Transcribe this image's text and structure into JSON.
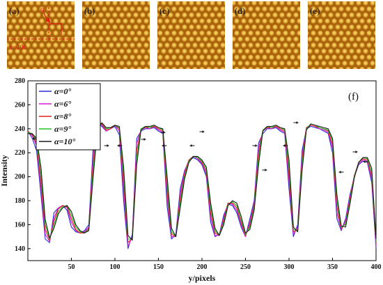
{
  "panels": [
    {
      "label": "(a)",
      "annotation_x": "x=200",
      "annotation_alpha": "α"
    },
    {
      "label": "(b)"
    },
    {
      "label": "(c)"
    },
    {
      "label": "(d)"
    },
    {
      "label": "(e)"
    }
  ],
  "colors": {
    "pattern_dark": "#8a4a08",
    "pattern_mid": "#c98b1a",
    "pattern_spot": "#f2c85a",
    "overlay_red": "#e0201a",
    "arrow": "#111111"
  },
  "chart_data": {
    "type": "line",
    "panel_label": "(f)",
    "xlabel": "y/pixels",
    "ylabel": "Intensity",
    "xlim": [
      0,
      400
    ],
    "ylim": [
      130,
      280
    ],
    "x_ticks": [
      50,
      100,
      150,
      200,
      250,
      300,
      350,
      400
    ],
    "y_ticks": [
      140,
      160,
      180,
      200,
      220,
      240,
      260,
      280
    ],
    "grid": false,
    "legend_position": "top-left",
    "x": [
      0,
      5,
      10,
      15,
      20,
      25,
      30,
      35,
      40,
      45,
      50,
      55,
      60,
      65,
      70,
      75,
      80,
      85,
      90,
      95,
      100,
      105,
      110,
      115,
      120,
      125,
      130,
      135,
      140,
      145,
      150,
      155,
      160,
      165,
      170,
      175,
      180,
      185,
      190,
      195,
      200,
      205,
      210,
      215,
      220,
      225,
      230,
      235,
      240,
      245,
      250,
      255,
      260,
      265,
      270,
      275,
      280,
      285,
      290,
      295,
      300,
      305,
      310,
      315,
      320,
      325,
      330,
      335,
      340,
      345,
      350,
      355,
      360,
      365,
      370,
      375,
      380,
      385,
      390,
      395,
      400
    ],
    "series": [
      {
        "name": "α=0°",
        "color": "#2b2bd6",
        "values": [
          238,
          232,
          222,
          185,
          148,
          145,
          170,
          174,
          176,
          172,
          158,
          154,
          153,
          155,
          160,
          225,
          244,
          242,
          238,
          240,
          242,
          235,
          180,
          140,
          152,
          232,
          238,
          240,
          240,
          241,
          238,
          236,
          175,
          148,
          152,
          190,
          205,
          213,
          216,
          214,
          210,
          200,
          162,
          150,
          152,
          168,
          177,
          176,
          170,
          158,
          150,
          165,
          180,
          228,
          236,
          240,
          240,
          241,
          238,
          236,
          190,
          150,
          160,
          222,
          240,
          242,
          241,
          240,
          238,
          236,
          220,
          165,
          155,
          165,
          185,
          200,
          210,
          213,
          212,
          195,
          140
        ]
      },
      {
        "name": "α=6°",
        "color": "#d61ed6",
        "values": [
          238,
          234,
          226,
          190,
          152,
          146,
          166,
          174,
          176,
          174,
          162,
          155,
          153,
          154,
          158,
          218,
          245,
          243,
          238,
          240,
          243,
          238,
          188,
          142,
          150,
          228,
          239,
          241,
          240,
          242,
          239,
          237,
          182,
          150,
          150,
          186,
          204,
          214,
          217,
          215,
          211,
          202,
          166,
          151,
          151,
          166,
          178,
          177,
          172,
          160,
          150,
          162,
          178,
          224,
          238,
          241,
          240,
          242,
          239,
          237,
          196,
          152,
          158,
          218,
          241,
          243,
          242,
          240,
          239,
          237,
          224,
          170,
          156,
          163,
          183,
          201,
          211,
          214,
          213,
          198,
          142
        ]
      },
      {
        "name": "α=8°",
        "color": "#e02020",
        "values": [
          238,
          235,
          228,
          196,
          156,
          147,
          163,
          173,
          176,
          175,
          165,
          156,
          153,
          153,
          157,
          212,
          244,
          244,
          239,
          240,
          243,
          240,
          195,
          145,
          149,
          222,
          240,
          241,
          241,
          242,
          240,
          238,
          188,
          152,
          150,
          182,
          202,
          214,
          217,
          216,
          212,
          204,
          170,
          153,
          151,
          164,
          178,
          178,
          174,
          162,
          151,
          160,
          176,
          220,
          239,
          241,
          241,
          242,
          240,
          238,
          202,
          154,
          156,
          214,
          241,
          243,
          242,
          241,
          240,
          238,
          227,
          175,
          157,
          161,
          181,
          201,
          212,
          215,
          214,
          201,
          144
        ]
      },
      {
        "name": "α=9°",
        "color": "#22c022",
        "values": [
          237,
          236,
          230,
          202,
          160,
          148,
          160,
          171,
          175,
          176,
          168,
          158,
          154,
          153,
          156,
          206,
          242,
          245,
          240,
          241,
          243,
          241,
          202,
          148,
          148,
          216,
          240,
          242,
          241,
          243,
          241,
          239,
          194,
          154,
          150,
          178,
          200,
          213,
          217,
          216,
          213,
          206,
          174,
          155,
          151,
          162,
          177,
          179,
          176,
          164,
          152,
          158,
          174,
          215,
          239,
          242,
          241,
          243,
          241,
          239,
          208,
          156,
          155,
          210,
          240,
          244,
          243,
          241,
          240,
          239,
          230,
          180,
          158,
          160,
          179,
          200,
          212,
          216,
          215,
          204,
          146
        ]
      },
      {
        "name": "α=10°",
        "color": "#1a1a1a",
        "values": [
          236,
          236,
          232,
          208,
          164,
          149,
          157,
          169,
          174,
          176,
          171,
          160,
          155,
          153,
          155,
          200,
          240,
          245,
          241,
          241,
          243,
          242,
          208,
          151,
          147,
          210,
          239,
          242,
          242,
          243,
          241,
          240,
          200,
          157,
          150,
          174,
          198,
          212,
          217,
          217,
          214,
          208,
          178,
          157,
          151,
          160,
          176,
          180,
          178,
          167,
          153,
          156,
          172,
          210,
          238,
          242,
          242,
          243,
          241,
          240,
          214,
          158,
          154,
          205,
          239,
          244,
          243,
          242,
          241,
          240,
          232,
          185,
          159,
          158,
          177,
          199,
          212,
          216,
          216,
          207,
          148
        ]
      }
    ]
  }
}
